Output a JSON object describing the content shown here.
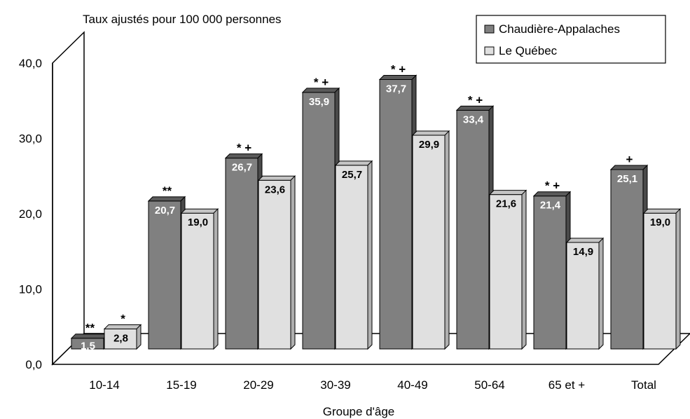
{
  "chart_data": {
    "type": "bar",
    "title": "",
    "ylabel": "Taux ajustés pour 100 000 personnes",
    "xlabel": "Groupe d'âge",
    "ylim": [
      0,
      40
    ],
    "yticks": [
      "0,0",
      "10,0",
      "20,0",
      "30,0",
      "40,0"
    ],
    "categories": [
      "10-14",
      "15-19",
      "20-29",
      "30-39",
      "40-49",
      "50-64",
      "65 et +",
      "Total"
    ],
    "series": [
      {
        "name": "Chaudière-Appalaches",
        "color": "#808080",
        "values": [
          1.5,
          20.7,
          26.7,
          35.9,
          37.7,
          33.4,
          21.4,
          25.1
        ],
        "labels": [
          "1,5",
          "20,7",
          "26,7",
          "35,9",
          "37,7",
          "33,4",
          "21,4",
          "25,1"
        ],
        "marks": [
          "**",
          "**",
          "* +",
          "* +",
          "* +",
          "* +",
          "* +",
          "+"
        ]
      },
      {
        "name": "Le Québec",
        "color": "#e0e0e0",
        "values": [
          2.8,
          19.0,
          23.6,
          25.7,
          29.9,
          21.6,
          14.9,
          19.0
        ],
        "labels": [
          "2,8",
          "19,0",
          "23,6",
          "25,7",
          "29,9",
          "21,6",
          "14,9",
          "19,0"
        ],
        "marks": [
          "*",
          "",
          "",
          "",
          "",
          "",
          "",
          ""
        ]
      }
    ],
    "legend_position": "top-right",
    "grid": false
  }
}
